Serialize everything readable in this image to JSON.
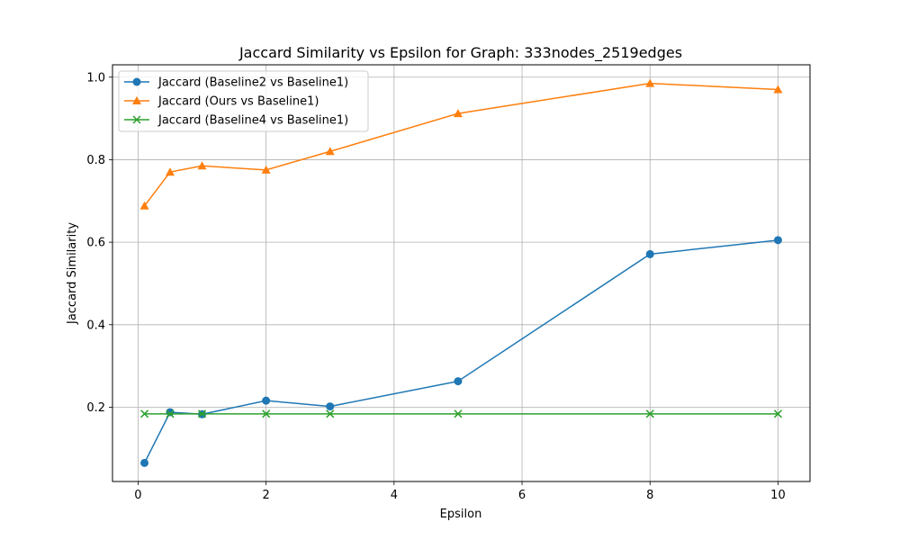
{
  "chart_data": {
    "type": "line",
    "title": "Jaccard Similarity vs Epsilon for Graph: 333nodes_2519edges",
    "xlabel": "Epsilon",
    "ylabel": "Jaccard Similarity",
    "xlim": [
      -0.4,
      10.5
    ],
    "ylim": [
      0.02,
      1.03
    ],
    "xticks": [
      0,
      2,
      4,
      6,
      8,
      10
    ],
    "yticks": [
      0.2,
      0.4,
      0.6,
      0.8,
      1.0
    ],
    "xtick_labels": [
      "0",
      "2",
      "4",
      "6",
      "8",
      "10"
    ],
    "ytick_labels": [
      "0.2",
      "0.4",
      "0.6",
      "0.8",
      "1.0"
    ],
    "grid": true,
    "legend_position": "top-left",
    "x": [
      0.1,
      0.5,
      1,
      2,
      3,
      5,
      8,
      10
    ],
    "series": [
      {
        "name": "Jaccard (Baseline2 vs Baseline1)",
        "color": "#1f77b4",
        "marker": "circle",
        "values": [
          0.065,
          0.188,
          0.183,
          0.216,
          0.202,
          0.263,
          0.571,
          0.605
        ]
      },
      {
        "name": "Jaccard (Ours vs Baseline1)",
        "color": "#ff7f0e",
        "marker": "triangle",
        "values": [
          0.688,
          0.77,
          0.785,
          0.775,
          0.82,
          0.912,
          0.985,
          0.97
        ]
      },
      {
        "name": "Jaccard (Baseline4 vs Baseline1)",
        "color": "#2ca02c",
        "marker": "x",
        "values": [
          0.184,
          0.184,
          0.184,
          0.184,
          0.184,
          0.184,
          0.184,
          0.184
        ]
      }
    ]
  }
}
